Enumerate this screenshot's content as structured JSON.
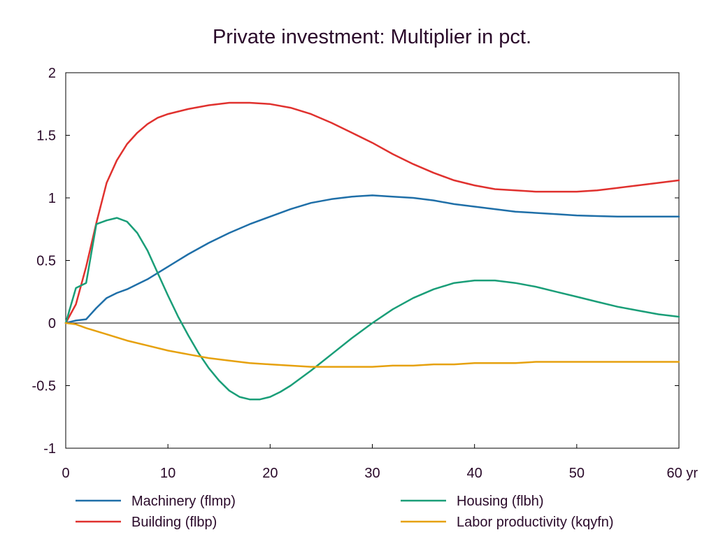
{
  "chart_data": {
    "type": "line",
    "title": "Private investment: Multiplier in pct.",
    "xlabel": "",
    "ylabel": "",
    "xlim": [
      0,
      60
    ],
    "ylim": [
      -1,
      2
    ],
    "x_ticks": [
      0,
      10,
      20,
      30,
      40,
      50,
      60
    ],
    "x_tick_labels": [
      "0",
      "10",
      "20",
      "30",
      "40",
      "50",
      "60 yr"
    ],
    "y_ticks": [
      -1,
      -0.5,
      0,
      0.5,
      1,
      1.5,
      2
    ],
    "y_tick_labels": [
      "-1",
      "-0.5",
      "0",
      "0.5",
      "1",
      "1.5",
      "2"
    ],
    "grid": false,
    "zero_line": true,
    "legend_position": "bottom",
    "series": [
      {
        "name": "Machinery (flmp)",
        "color": "#1f6fa8",
        "x": [
          0,
          1,
          2,
          3,
          4,
          5,
          6,
          7,
          8,
          9,
          10,
          12,
          14,
          16,
          18,
          20,
          22,
          24,
          26,
          28,
          30,
          32,
          34,
          36,
          38,
          40,
          42,
          44,
          46,
          48,
          50,
          52,
          54,
          56,
          58,
          60
        ],
        "y": [
          0,
          0.02,
          0.03,
          0.12,
          0.2,
          0.24,
          0.27,
          0.31,
          0.35,
          0.4,
          0.45,
          0.55,
          0.64,
          0.72,
          0.79,
          0.85,
          0.91,
          0.96,
          0.99,
          1.01,
          1.02,
          1.01,
          1.0,
          0.98,
          0.95,
          0.93,
          0.91,
          0.89,
          0.88,
          0.87,
          0.86,
          0.855,
          0.85,
          0.85,
          0.85,
          0.85
        ]
      },
      {
        "name": "Building (flbp)",
        "color": "#e0312e",
        "x": [
          0,
          1,
          2,
          3,
          4,
          5,
          6,
          7,
          8,
          9,
          10,
          12,
          14,
          16,
          18,
          20,
          22,
          24,
          26,
          28,
          30,
          32,
          34,
          36,
          38,
          40,
          42,
          44,
          46,
          48,
          50,
          52,
          54,
          56,
          58,
          60
        ],
        "y": [
          0,
          0.15,
          0.45,
          0.8,
          1.12,
          1.3,
          1.43,
          1.52,
          1.59,
          1.64,
          1.67,
          1.71,
          1.74,
          1.76,
          1.76,
          1.75,
          1.72,
          1.67,
          1.6,
          1.52,
          1.44,
          1.35,
          1.27,
          1.2,
          1.14,
          1.1,
          1.07,
          1.06,
          1.05,
          1.05,
          1.05,
          1.06,
          1.08,
          1.1,
          1.12,
          1.14
        ]
      },
      {
        "name": "Housing (flbh)",
        "color": "#1a9e78",
        "x": [
          0,
          1,
          2,
          3,
          4,
          5,
          6,
          7,
          8,
          9,
          10,
          11,
          12,
          13,
          14,
          15,
          16,
          17,
          18,
          19,
          20,
          21,
          22,
          24,
          26,
          28,
          30,
          32,
          34,
          36,
          38,
          40,
          42,
          44,
          46,
          48,
          50,
          52,
          54,
          56,
          58,
          60
        ],
        "y": [
          0,
          0.28,
          0.32,
          0.79,
          0.82,
          0.84,
          0.81,
          0.72,
          0.58,
          0.4,
          0.22,
          0.05,
          -0.1,
          -0.24,
          -0.36,
          -0.46,
          -0.54,
          -0.59,
          -0.61,
          -0.61,
          -0.59,
          -0.55,
          -0.5,
          -0.38,
          -0.25,
          -0.12,
          0.0,
          0.11,
          0.2,
          0.27,
          0.32,
          0.34,
          0.34,
          0.32,
          0.29,
          0.25,
          0.21,
          0.17,
          0.13,
          0.1,
          0.07,
          0.05
        ]
      },
      {
        "name": "Labor productivity (kqyfn)",
        "color": "#e6a10e",
        "x": [
          0,
          1,
          2,
          4,
          6,
          8,
          10,
          12,
          14,
          16,
          18,
          20,
          22,
          24,
          26,
          28,
          30,
          32,
          34,
          36,
          38,
          40,
          42,
          44,
          46,
          48,
          50,
          52,
          54,
          56,
          58,
          60
        ],
        "y": [
          0,
          -0.01,
          -0.04,
          -0.09,
          -0.14,
          -0.18,
          -0.22,
          -0.25,
          -0.28,
          -0.3,
          -0.32,
          -0.33,
          -0.34,
          -0.35,
          -0.35,
          -0.35,
          -0.35,
          -0.34,
          -0.34,
          -0.33,
          -0.33,
          -0.32,
          -0.32,
          -0.32,
          -0.31,
          -0.31,
          -0.31,
          -0.31,
          -0.31,
          -0.31,
          -0.31,
          -0.31
        ]
      }
    ]
  }
}
